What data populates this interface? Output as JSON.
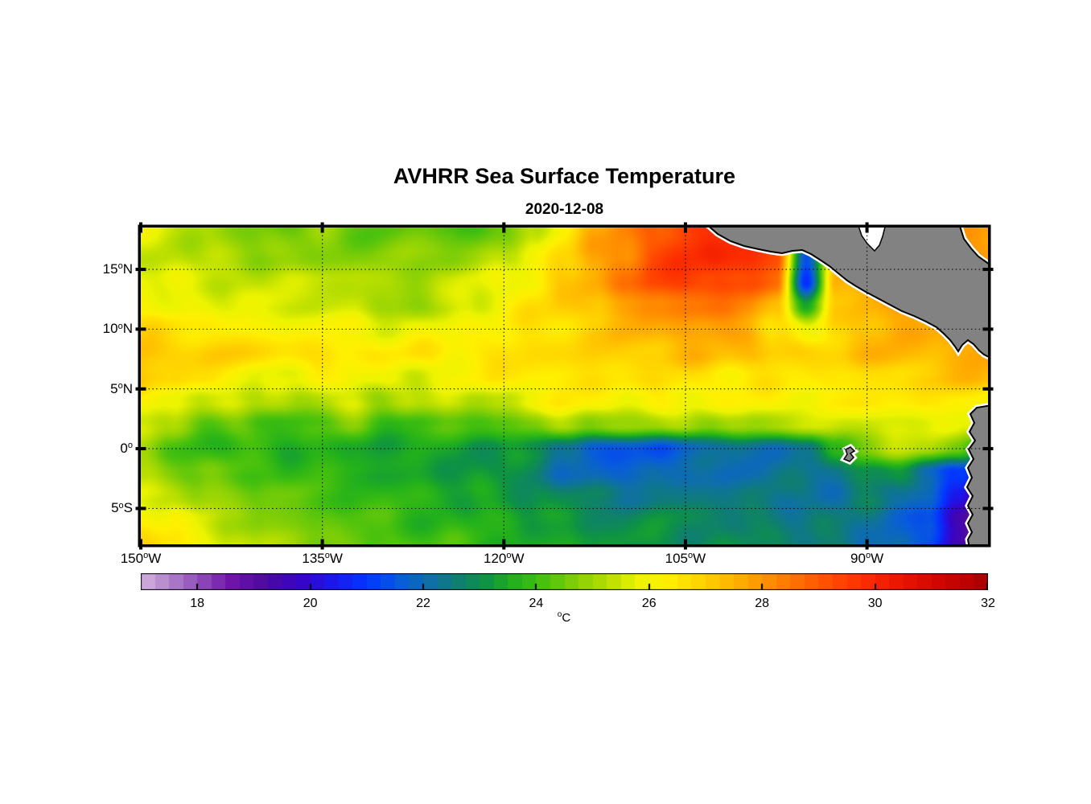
{
  "chart_data": {
    "type": "heatmap",
    "title": "AVHRR Sea Surface Temperature",
    "subtitle": "2020-12-08",
    "lon_range": [
      -150,
      -80
    ],
    "lat_range": [
      -8.0,
      18.5
    ],
    "grid_on": true,
    "xticks": [
      {
        "deg": "150",
        "hemi": "W",
        "lon": -150
      },
      {
        "deg": "135",
        "hemi": "W",
        "lon": -135
      },
      {
        "deg": "120",
        "hemi": "W",
        "lon": -120
      },
      {
        "deg": "105",
        "hemi": "W",
        "lon": -105
      },
      {
        "deg": "90",
        "hemi": "W",
        "lon": -90
      }
    ],
    "yticks": [
      {
        "deg": "15",
        "hemi": "N",
        "lat": 15
      },
      {
        "deg": "10",
        "hemi": "N",
        "lat": 10
      },
      {
        "deg": "5",
        "hemi": "N",
        "lat": 5
      },
      {
        "deg": "0",
        "hemi": "",
        "lat": 0
      },
      {
        "deg": "5",
        "hemi": "S",
        "lat": -5
      }
    ],
    "grid": {
      "lons": [
        -150,
        -147.5,
        -145,
        -142.5,
        -140,
        -137.5,
        -135,
        -132.5,
        -130,
        -127.5,
        -125,
        -122.5,
        -120,
        -117.5,
        -115,
        -112.5,
        -110,
        -107.5,
        -105,
        -102.5,
        -100,
        -97.5,
        -95,
        -92.5,
        -90,
        -87.5,
        -85,
        -82.5,
        -80
      ],
      "lats": [
        18.5,
        16,
        14,
        12,
        10,
        8,
        6,
        4,
        2,
        0,
        -2,
        -4,
        -6,
        -8
      ],
      "sst_c": [
        [
          25.8,
          25.5,
          25.1,
          24.8,
          24.6,
          24.5,
          24.7,
          24.5,
          24.3,
          24.5,
          24.2,
          23.9,
          24.4,
          25.3,
          26.5,
          27.4,
          28.2,
          28.9,
          29.4,
          29.7,
          29.8,
          29.5,
          29.0,
          28.2,
          27.8,
          27.6,
          27.6,
          27.7,
          27.8
        ],
        [
          25.6,
          25.4,
          25.2,
          25.0,
          24.9,
          24.8,
          24.8,
          24.7,
          24.6,
          24.8,
          24.9,
          25.0,
          25.3,
          26.0,
          26.8,
          27.6,
          28.4,
          29.2,
          29.7,
          30.0,
          29.9,
          29.3,
          21.5,
          27.0,
          27.6,
          27.6,
          27.6,
          27.7,
          27.8
        ],
        [
          25.9,
          25.7,
          25.6,
          25.5,
          25.4,
          25.4,
          25.4,
          25.3,
          25.2,
          25.1,
          25.3,
          25.6,
          25.9,
          26.4,
          27.0,
          27.7,
          28.5,
          29.2,
          29.6,
          29.5,
          29.1,
          28.6,
          20.8,
          27.5,
          27.7,
          27.6,
          27.6,
          27.8,
          27.9
        ],
        [
          26.1,
          25.9,
          25.8,
          25.7,
          25.6,
          25.6,
          25.6,
          25.4,
          24.9,
          24.8,
          25.3,
          25.7,
          26.2,
          26.6,
          26.9,
          27.3,
          27.8,
          28.2,
          28.5,
          28.4,
          28.2,
          27.4,
          23.6,
          26.8,
          27.6,
          27.6,
          27.7,
          27.8,
          27.8
        ],
        [
          26.7,
          26.6,
          26.5,
          26.4,
          26.2,
          26.1,
          26.1,
          26.0,
          25.9,
          25.9,
          26.0,
          26.1,
          26.3,
          26.5,
          26.7,
          27.0,
          27.3,
          27.6,
          27.8,
          27.8,
          27.7,
          26.6,
          25.6,
          26.9,
          27.4,
          27.5,
          27.6,
          27.7,
          27.8
        ],
        [
          27.3,
          27.1,
          27.0,
          26.9,
          26.8,
          26.7,
          26.6,
          26.5,
          26.4,
          26.4,
          26.4,
          26.5,
          26.6,
          26.7,
          26.8,
          26.9,
          27.0,
          27.2,
          27.3,
          27.3,
          27.3,
          27.1,
          26.9,
          27.1,
          27.3,
          27.4,
          27.4,
          27.6,
          27.7
        ],
        [
          27.1,
          26.8,
          26.5,
          26.3,
          25.9,
          25.7,
          26.1,
          26.2,
          25.8,
          25.6,
          26.0,
          26.2,
          26.4,
          26.5,
          26.5,
          26.6,
          26.6,
          26.6,
          26.6,
          26.5,
          26.5,
          26.4,
          26.4,
          26.5,
          26.6,
          26.8,
          27.0,
          27.2,
          27.4
        ],
        [
          26.4,
          25.9,
          25.4,
          25.6,
          25.2,
          24.9,
          25.5,
          25.7,
          24.7,
          25.3,
          25.6,
          25.1,
          25.5,
          26.0,
          26.3,
          26.2,
          26.1,
          26.2,
          26.1,
          26.1,
          26.2,
          26.2,
          26.2,
          26.3,
          26.4,
          26.4,
          26.4,
          26.5,
          26.3
        ],
        [
          25.6,
          24.9,
          24.3,
          24.6,
          24.1,
          23.9,
          24.3,
          24.5,
          23.9,
          24.1,
          24.3,
          24.0,
          24.2,
          24.6,
          25.2,
          25.0,
          24.7,
          24.9,
          25.2,
          24.9,
          25.0,
          25.2,
          25.4,
          25.3,
          25.6,
          25.8,
          25.5,
          25.9,
          26.0
        ],
        [
          24.9,
          24.3,
          23.9,
          23.8,
          23.7,
          23.6,
          23.7,
          23.5,
          23.3,
          23.4,
          23.3,
          23.2,
          23.3,
          23.0,
          22.2,
          21.6,
          21.3,
          21.6,
          21.8,
          22.0,
          22.2,
          22.0,
          22.4,
          23.8,
          24.8,
          25.1,
          25.3,
          24.6,
          23.5
        ],
        [
          25.1,
          24.7,
          24.4,
          24.3,
          24.2,
          23.9,
          23.8,
          23.6,
          23.5,
          23.4,
          23.3,
          23.2,
          23.0,
          22.6,
          22.2,
          21.8,
          21.8,
          22.0,
          21.9,
          22.1,
          22.2,
          22.3,
          22.2,
          22.4,
          23.0,
          23.2,
          22.2,
          20.8,
          19.8
        ],
        [
          25.9,
          25.4,
          25.0,
          24.7,
          24.5,
          24.3,
          24.1,
          24.0,
          23.8,
          23.7,
          23.5,
          23.4,
          23.3,
          23.1,
          22.8,
          22.5,
          22.4,
          22.5,
          22.4,
          22.5,
          22.4,
          22.3,
          22.4,
          22.3,
          22.5,
          22.3,
          21.8,
          20.4,
          18.4
        ],
        [
          26.5,
          26.0,
          25.5,
          25.1,
          24.8,
          24.6,
          24.4,
          24.2,
          24.0,
          23.9,
          23.7,
          23.6,
          23.5,
          23.3,
          23.2,
          23.0,
          22.9,
          23.0,
          22.9,
          22.8,
          22.7,
          22.6,
          22.5,
          22.4,
          22.3,
          22.0,
          21.4,
          19.4,
          17.8
        ],
        [
          26.8,
          26.5,
          26.1,
          25.6,
          25.1,
          24.9,
          24.7,
          24.5,
          24.3,
          24.1,
          24.0,
          23.9,
          23.7,
          23.5,
          23.4,
          23.2,
          23.1,
          23.1,
          23.0,
          22.9,
          22.8,
          22.7,
          22.6,
          22.5,
          22.3,
          21.9,
          21.2,
          19.6,
          17.4
        ]
      ]
    },
    "colorbar": {
      "range": [
        17,
        32
      ],
      "ticks": [
        {
          "label": "18",
          "value": 18
        },
        {
          "label": "20",
          "value": 20
        },
        {
          "label": "22",
          "value": 22
        },
        {
          "label": "24",
          "value": 24
        },
        {
          "label": "26",
          "value": 26
        },
        {
          "label": "28",
          "value": 28
        },
        {
          "label": "30",
          "value": 30
        },
        {
          "label": "32",
          "value": 32
        }
      ],
      "unit": "C",
      "deg_mark": "o",
      "palette": [
        [
          17.0,
          "#d2b1e0"
        ],
        [
          17.5,
          "#b183cb"
        ],
        [
          18.0,
          "#9150b9"
        ],
        [
          18.6,
          "#6f14ab"
        ],
        [
          19.2,
          "#4d0a9e"
        ],
        [
          19.8,
          "#3804c6"
        ],
        [
          20.4,
          "#1c17ea"
        ],
        [
          21.0,
          "#0337ff"
        ],
        [
          21.6,
          "#085cdc"
        ],
        [
          22.1,
          "#0e6fa9"
        ],
        [
          22.6,
          "#0f7e72"
        ],
        [
          23.1,
          "#0d9344"
        ],
        [
          23.6,
          "#22b01c"
        ],
        [
          24.1,
          "#44c00e"
        ],
        [
          24.7,
          "#84cf06"
        ],
        [
          25.3,
          "#badf00"
        ],
        [
          25.8,
          "#ecf400"
        ],
        [
          26.3,
          "#fff000"
        ],
        [
          26.9,
          "#ffd400"
        ],
        [
          27.5,
          "#ffb200"
        ],
        [
          28.1,
          "#ff8e00"
        ],
        [
          28.7,
          "#ff6a00"
        ],
        [
          29.3,
          "#ff4600"
        ],
        [
          29.9,
          "#fb2a00"
        ],
        [
          30.5,
          "#e71300"
        ],
        [
          31.1,
          "#d00700"
        ],
        [
          31.6,
          "#bc0200"
        ],
        [
          32.0,
          "#a60000"
        ]
      ]
    },
    "map": {
      "land_color": "#828282",
      "coast_outline": "#000000",
      "coast_fringe": "#ffffff",
      "land_polygons": {
        "central_america": [
          [
            702,
            -5
          ],
          [
            717,
            8
          ],
          [
            733,
            17
          ],
          [
            750,
            23
          ],
          [
            768,
            27
          ],
          [
            783,
            30
          ],
          [
            797,
            32
          ],
          [
            810,
            29
          ],
          [
            822,
            28
          ],
          [
            833,
            33
          ],
          [
            844,
            40
          ],
          [
            856,
            48
          ],
          [
            867,
            57
          ],
          [
            878,
            66
          ],
          [
            889,
            73
          ],
          [
            901,
            80
          ],
          [
            916,
            88
          ],
          [
            931,
            96
          ],
          [
            946,
            104
          ],
          [
            961,
            110
          ],
          [
            976,
            117
          ],
          [
            989,
            124
          ],
          [
            998,
            132
          ],
          [
            1006,
            140
          ],
          [
            1012,
            148
          ],
          [
            1016,
            154
          ],
          [
            1021,
            146
          ],
          [
            1028,
            140
          ],
          [
            1035,
            145
          ],
          [
            1042,
            153
          ],
          [
            1048,
            158
          ],
          [
            1058,
            163
          ],
          [
            1058,
            48
          ],
          [
            1041,
            36
          ],
          [
            1032,
            26
          ],
          [
            1023,
            14
          ],
          [
            1017,
            -5
          ]
        ],
        "honduras_gulf_notch": [
          [
            891,
            -5
          ],
          [
            896,
            10
          ],
          [
            903,
            20
          ],
          [
            912,
            29
          ],
          [
            918,
            22
          ],
          [
            922,
            11
          ],
          [
            926,
            -5
          ]
        ],
        "south_america": [
          [
            1058,
            221
          ],
          [
            1039,
            224
          ],
          [
            1031,
            232
          ],
          [
            1036,
            243
          ],
          [
            1030,
            254
          ],
          [
            1037,
            265
          ],
          [
            1029,
            276
          ],
          [
            1035,
            288
          ],
          [
            1028,
            299
          ],
          [
            1033,
            311
          ],
          [
            1027,
            323
          ],
          [
            1034,
            334
          ],
          [
            1028,
            346
          ],
          [
            1034,
            357
          ],
          [
            1028,
            368
          ],
          [
            1033,
            379
          ],
          [
            1028,
            388
          ],
          [
            1030,
            399
          ],
          [
            1058,
            399
          ]
        ],
        "galapagos_island": [
          [
            876,
            276
          ],
          [
            882,
            273
          ],
          [
            887,
            278
          ],
          [
            882,
            281
          ],
          [
            886,
            286
          ],
          [
            881,
            291
          ],
          [
            874,
            288
          ],
          [
            878,
            282
          ]
        ]
      }
    }
  }
}
